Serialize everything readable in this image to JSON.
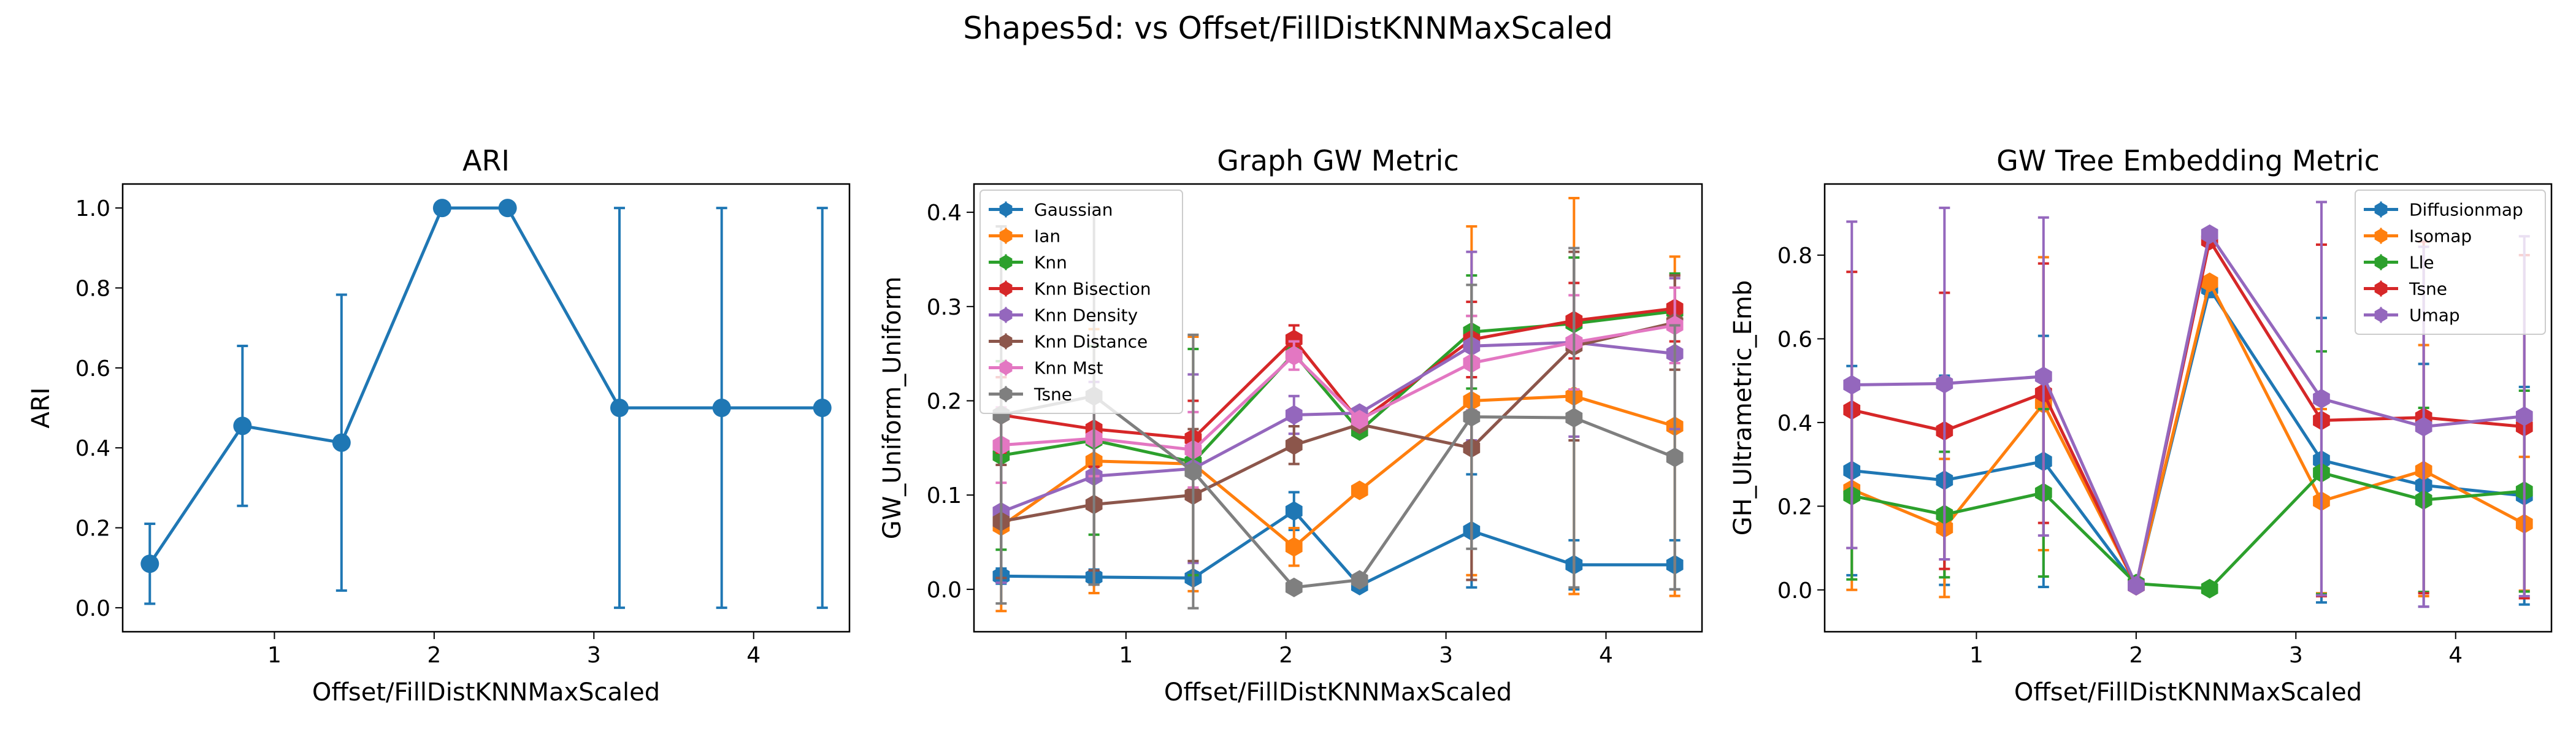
{
  "figure": {
    "suptitle": "Shapes5d: vs Offset/FillDistKNNMaxScaled"
  },
  "chart_data": [
    {
      "type": "line",
      "title": "ARI",
      "xlabel": "Offset/FillDistKNNMaxScaled",
      "ylabel": "ARI",
      "xlim": [
        0.05,
        4.6
      ],
      "ylim": [
        -0.06,
        1.06
      ],
      "xticks": [
        1,
        2,
        3,
        4
      ],
      "yticks": [
        0.0,
        0.2,
        0.4,
        0.6,
        0.8,
        1.0
      ],
      "ytick_labels": [
        "0.0",
        "0.2",
        "0.4",
        "0.6",
        "0.8",
        "1.0"
      ],
      "legend": null,
      "x": [
        0.22,
        0.8,
        1.42,
        2.05,
        2.46,
        3.16,
        3.8,
        4.43
      ],
      "series": [
        {
          "color": "#1f77b4",
          "values": [
            0.11,
            0.455,
            0.413,
            1.0,
            1.0,
            0.5,
            0.5,
            0.5
          ],
          "err": [
            0.1,
            0.2,
            0.37,
            0.0,
            0.0,
            0.5,
            0.5,
            0.5
          ]
        }
      ]
    },
    {
      "type": "line",
      "title": "Graph GW Metric",
      "xlabel": "Offset/FillDistKNNMaxScaled",
      "ylabel": "GW_Uniform_Uniform",
      "xlim": [
        0.05,
        4.6
      ],
      "ylim": [
        -0.045,
        0.43
      ],
      "xticks": [
        1,
        2,
        3,
        4
      ],
      "yticks": [
        0.0,
        0.1,
        0.2,
        0.3,
        0.4
      ],
      "ytick_labels": [
        "0.0",
        "0.1",
        "0.2",
        "0.3",
        "0.4"
      ],
      "legend": "top-left",
      "x": [
        0.22,
        0.8,
        1.42,
        2.05,
        2.46,
        3.16,
        3.8,
        4.43
      ],
      "series": [
        {
          "name": "Gaussian",
          "color": "#1f77b4",
          "values": [
            0.014,
            0.013,
            0.012,
            0.083,
            0.004,
            0.062,
            0.026,
            0.026
          ],
          "err": [
            0.008,
            0.008,
            0.006,
            0.02,
            0.004,
            0.06,
            0.026,
            0.026
          ]
        },
        {
          "name": "Ian",
          "color": "#ff7f0e",
          "values": [
            0.067,
            0.136,
            0.133,
            0.045,
            0.105,
            0.2,
            0.205,
            0.173
          ],
          "err": [
            0.09,
            0.14,
            0.135,
            0.02,
            0.0,
            0.185,
            0.21,
            0.18
          ]
        },
        {
          "name": "Knn",
          "color": "#2ca02c",
          "values": [
            0.142,
            0.158,
            0.135,
            0.25,
            0.168,
            0.273,
            0.282,
            0.295
          ],
          "err": [
            0.1,
            0.1,
            0.12,
            0.0,
            0.0,
            0.06,
            0.07,
            0.04
          ]
        },
        {
          "name": "Knn Bisection",
          "color": "#d62728",
          "values": [
            0.185,
            0.17,
            0.16,
            0.265,
            0.178,
            0.265,
            0.285,
            0.298
          ],
          "err": [
            0.04,
            0.04,
            0.04,
            0.015,
            0.0,
            0.04,
            0.04,
            0.035
          ]
        },
        {
          "name": "Knn Density",
          "color": "#9467bd",
          "values": [
            0.082,
            0.12,
            0.128,
            0.185,
            0.187,
            0.258,
            0.262,
            0.25
          ],
          "err": [
            0.075,
            0.1,
            0.1,
            0.02,
            0.0,
            0.1,
            0.1,
            0.08
          ]
        },
        {
          "name": "Knn Distance",
          "color": "#8c564b",
          "values": [
            0.072,
            0.09,
            0.1,
            0.153,
            0.175,
            0.15,
            0.258,
            0.283
          ],
          "err": [
            0.06,
            0.07,
            0.07,
            0.02,
            0.0,
            0.14,
            0.1,
            0.05
          ]
        },
        {
          "name": "Knn Mst",
          "color": "#e377c2",
          "values": [
            0.153,
            0.16,
            0.148,
            0.248,
            0.18,
            0.24,
            0.262,
            0.28
          ],
          "err": [
            0.04,
            0.04,
            0.04,
            0.015,
            0.0,
            0.05,
            0.05,
            0.04
          ]
        },
        {
          "name": "Tsne",
          "color": "#7f7f7f",
          "values": [
            0.185,
            0.205,
            0.125,
            0.002,
            0.01,
            0.183,
            0.182,
            0.14
          ],
          "err": [
            0.2,
            0.2,
            0.145,
            0.004,
            0.004,
            0.14,
            0.18,
            0.14
          ]
        }
      ]
    },
    {
      "type": "line",
      "title": "GW Tree Embedding Metric",
      "xlabel": "Offset/FillDistKNNMaxScaled",
      "ylabel": "GH_Ultrametric_Emb",
      "xlim": [
        0.05,
        4.6
      ],
      "ylim": [
        -0.1,
        0.97
      ],
      "xticks": [
        1,
        2,
        3,
        4
      ],
      "yticks": [
        0.0,
        0.2,
        0.4,
        0.6,
        0.8
      ],
      "ytick_labels": [
        "0.0",
        "0.2",
        "0.4",
        "0.6",
        "0.8"
      ],
      "legend": "top-right",
      "x": [
        0.22,
        0.8,
        1.42,
        2.0,
        2.46,
        3.16,
        3.8,
        4.43
      ],
      "series": [
        {
          "name": "Diffusionmap",
          "color": "#1f77b4",
          "values": [
            0.285,
            0.262,
            0.307,
            0.01,
            0.72,
            0.31,
            0.25,
            0.225
          ],
          "err": [
            0.25,
            0.25,
            0.3,
            0.0,
            0.02,
            0.34,
            0.29,
            0.26
          ]
        },
        {
          "name": "Isomap",
          "color": "#ff7f0e",
          "values": [
            0.24,
            0.148,
            0.445,
            0.01,
            0.735,
            0.212,
            0.285,
            0.158
          ],
          "err": [
            0.24,
            0.165,
            0.35,
            0.0,
            0.0,
            0.22,
            0.3,
            0.16
          ]
        },
        {
          "name": "Lle",
          "color": "#2ca02c",
          "values": [
            0.225,
            0.18,
            0.232,
            0.015,
            0.003,
            0.28,
            0.215,
            0.236
          ],
          "err": [
            0.2,
            0.15,
            0.2,
            0.0,
            0.0,
            0.29,
            0.22,
            0.24
          ]
        },
        {
          "name": "Tsne",
          "color": "#d62728",
          "values": [
            0.43,
            0.38,
            0.47,
            0.01,
            0.835,
            0.405,
            0.412,
            0.39
          ],
          "err": [
            0.33,
            0.33,
            0.31,
            0.0,
            0.0,
            0.42,
            0.42,
            0.41
          ]
        },
        {
          "name": "Umap",
          "color": "#9467bd",
          "values": [
            0.49,
            0.493,
            0.51,
            0.01,
            0.85,
            0.457,
            0.39,
            0.415
          ],
          "err": [
            0.39,
            0.42,
            0.38,
            0.0,
            0.0,
            0.47,
            0.43,
            0.43
          ]
        }
      ]
    }
  ]
}
